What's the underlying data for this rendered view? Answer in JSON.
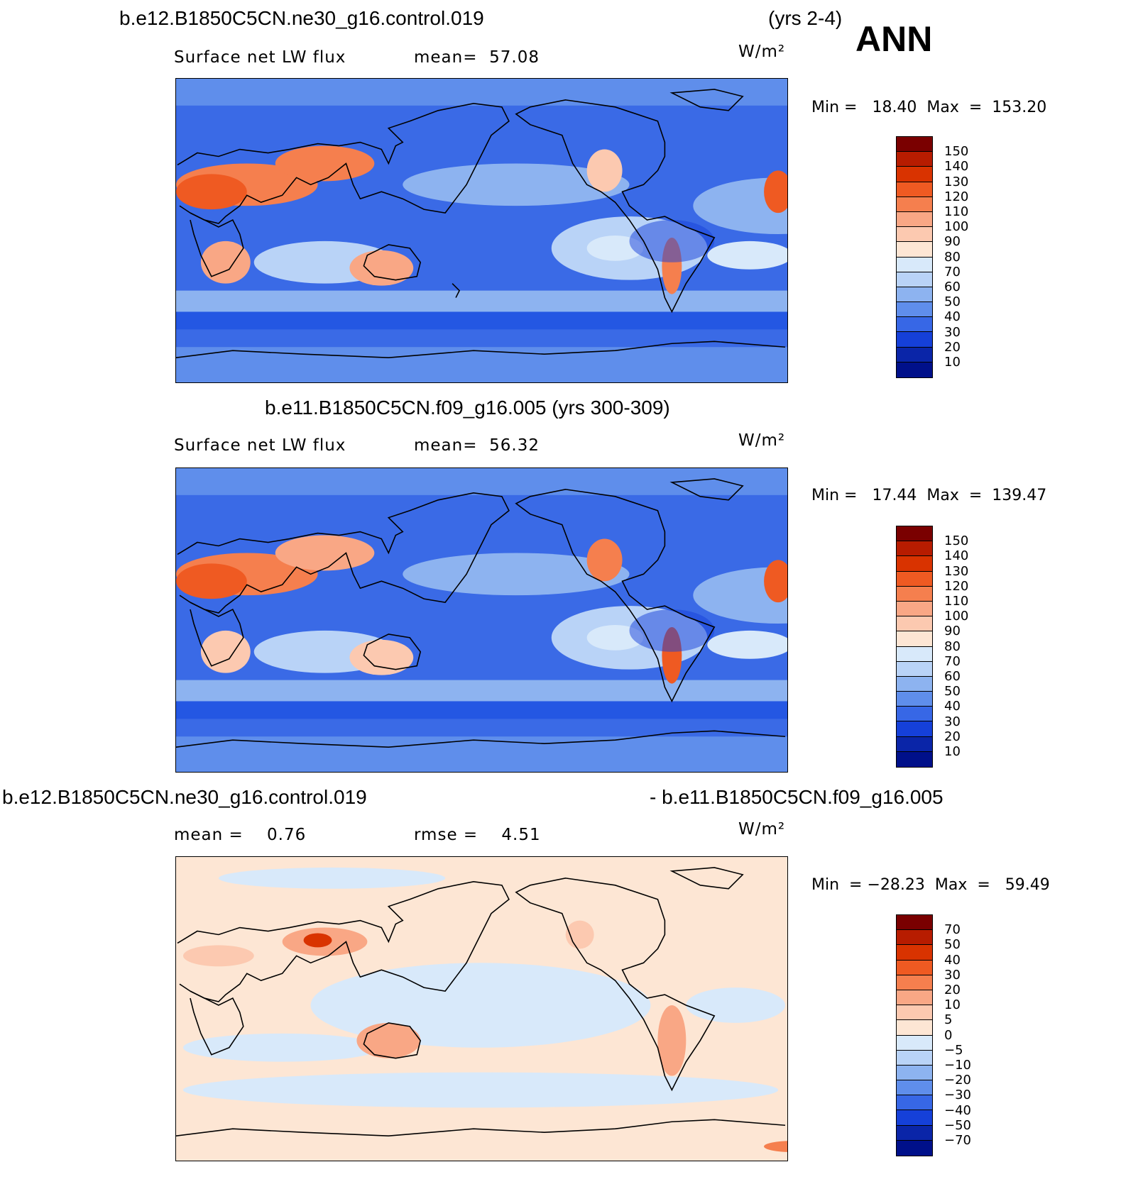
{
  "season": "ANN",
  "panels": [
    {
      "title_left": "b.e12.B1850C5CN.ne30_g16.control.019",
      "title_right": "(yrs 2-4)",
      "field": "Surface net LW flux",
      "stat1": "mean=  57.08",
      "stat2": "",
      "units": "W/m²",
      "minmax": "Min =   18.40  Max  =  153.20",
      "kind": "abs"
    },
    {
      "title_left": "b.e11.B1850C5CN.f09_g16.005 (yrs 300-309)",
      "title_right": "",
      "field": "Surface net LW flux",
      "stat1": "mean=  56.32",
      "stat2": "",
      "units": "W/m²",
      "minmax": "Min =   17.44  Max  =  139.47",
      "kind": "abs"
    },
    {
      "title_left": "b.e12.B1850C5CN.ne30_g16.control.019",
      "title_right": "- b.e11.B1850C5CN.f09_g16.005",
      "field": "mean =    0.76",
      "stat1": "rmse =    4.51",
      "stat2": "",
      "units": "W/m²",
      "minmax": "Min  = −28.23  Max  =   59.49",
      "kind": "diff"
    }
  ],
  "colorbar_abs": {
    "labels": [
      "150",
      "140",
      "130",
      "120",
      "110",
      "100",
      "90",
      "80",
      "70",
      "60",
      "50",
      "40",
      "30",
      "20",
      "10"
    ],
    "colors": [
      "#7a0000",
      "#b71c00",
      "#d93300",
      "#ef5a22",
      "#f57f4e",
      "#f9a785",
      "#fcc9b0",
      "#fde6d4",
      "#d8e9fa",
      "#b9d3f7",
      "#8db3f0",
      "#5f8eeb",
      "#3767e6",
      "#1540d9",
      "#0a25a8",
      "#00108a"
    ]
  },
  "colorbar_diff": {
    "labels": [
      "70",
      "50",
      "40",
      "30",
      "20",
      "10",
      "5",
      "0",
      "−5",
      "−10",
      "−20",
      "−30",
      "−40",
      "−50",
      "−70"
    ],
    "colors": [
      "#7a0000",
      "#b71c00",
      "#d93300",
      "#ef5a22",
      "#f57f4e",
      "#f9a785",
      "#fcc9b0",
      "#fde6d4",
      "#d8e9fa",
      "#b9d3f7",
      "#8db3f0",
      "#5f8eeb",
      "#3767e6",
      "#1540d9",
      "#0a25a8",
      "#00108a"
    ]
  }
}
